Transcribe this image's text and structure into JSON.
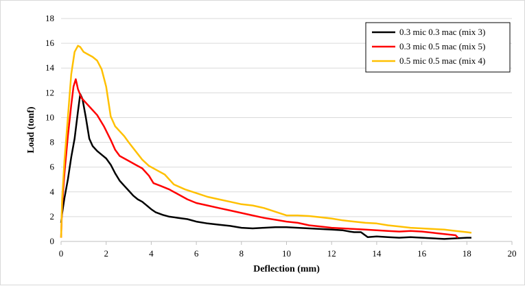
{
  "chart_data": {
    "type": "line",
    "xlabel": "Deflection (mm)",
    "ylabel": "Load (tonf)",
    "xlim": [
      0,
      20
    ],
    "ylim": [
      0,
      18
    ],
    "xticks": [
      0,
      2,
      4,
      6,
      8,
      10,
      12,
      14,
      16,
      18,
      20
    ],
    "yticks": [
      0,
      2,
      4,
      6,
      8,
      10,
      12,
      14,
      16,
      18
    ],
    "grid": "horizontal",
    "legend_position": "top-right",
    "series": [
      {
        "name": "0.3 mic 0.3 mac (mix 3)",
        "color": "#000000",
        "x": [
          0,
          0.05,
          0.15,
          0.3,
          0.45,
          0.6,
          0.75,
          0.85,
          0.95,
          1.1,
          1.25,
          1.4,
          1.6,
          1.8,
          2.0,
          2.2,
          2.4,
          2.6,
          2.8,
          3.0,
          3.2,
          3.4,
          3.6,
          3.8,
          4.0,
          4.2,
          4.5,
          4.8,
          5.2,
          5.6,
          6.0,
          6.5,
          7.0,
          7.5,
          8.0,
          8.5,
          9.0,
          9.5,
          10.0,
          10.5,
          11.0,
          11.5,
          12.0,
          12.5,
          12.8,
          13.0,
          13.3,
          13.6,
          14.0,
          14.5,
          15.0,
          15.5,
          16.0,
          16.5,
          17.0,
          17.5,
          18.0,
          18.2
        ],
        "y": [
          1.5,
          2.3,
          3.5,
          5.0,
          6.8,
          8.3,
          10.5,
          11.9,
          11.5,
          10.0,
          8.3,
          7.7,
          7.3,
          7.0,
          6.7,
          6.2,
          5.5,
          4.9,
          4.5,
          4.1,
          3.7,
          3.4,
          3.2,
          2.9,
          2.6,
          2.35,
          2.15,
          2.0,
          1.9,
          1.8,
          1.6,
          1.45,
          1.35,
          1.25,
          1.1,
          1.05,
          1.1,
          1.15,
          1.15,
          1.1,
          1.05,
          1.0,
          0.95,
          0.9,
          0.8,
          0.75,
          0.75,
          0.35,
          0.4,
          0.35,
          0.3,
          0.35,
          0.3,
          0.25,
          0.2,
          0.25,
          0.3,
          0.3
        ]
      },
      {
        "name": "0.3 mic 0.5 mac (mix 5)",
        "color": "#ff0000",
        "x": [
          0,
          0.05,
          0.15,
          0.3,
          0.45,
          0.55,
          0.65,
          0.75,
          0.9,
          1.1,
          1.3,
          1.6,
          1.9,
          2.2,
          2.4,
          2.6,
          2.8,
          3.0,
          3.3,
          3.6,
          3.9,
          4.1,
          4.4,
          4.8,
          5.2,
          5.6,
          6.0,
          6.5,
          7.0,
          7.5,
          8.0,
          8.5,
          9.0,
          9.5,
          10.0,
          10.5,
          11.0,
          11.5,
          12.0,
          12.5,
          13.0,
          13.5,
          14.0,
          14.5,
          15.0,
          15.5,
          16.0,
          16.5,
          17.0,
          17.5,
          17.6
        ],
        "y": [
          0.3,
          3.0,
          5.5,
          8.5,
          11.0,
          12.5,
          13.1,
          12.3,
          11.6,
          11.2,
          10.8,
          10.2,
          9.3,
          8.2,
          7.4,
          6.9,
          6.7,
          6.5,
          6.2,
          5.9,
          5.3,
          4.7,
          4.5,
          4.2,
          3.8,
          3.4,
          3.1,
          2.9,
          2.7,
          2.5,
          2.3,
          2.1,
          1.9,
          1.75,
          1.6,
          1.5,
          1.3,
          1.2,
          1.1,
          1.05,
          1.0,
          0.95,
          0.9,
          0.85,
          0.8,
          0.85,
          0.8,
          0.7,
          0.6,
          0.5,
          0.3
        ]
      },
      {
        "name": "0.5 mic 0.5 mac (mix 4)",
        "color": "#ffc000",
        "x": [
          0,
          0.05,
          0.15,
          0.3,
          0.45,
          0.6,
          0.75,
          0.85,
          1.0,
          1.2,
          1.4,
          1.6,
          1.8,
          2.0,
          2.2,
          2.4,
          2.6,
          2.8,
          3.0,
          3.3,
          3.6,
          3.9,
          4.2,
          4.6,
          5.0,
          5.5,
          6.0,
          6.5,
          7.0,
          7.5,
          8.0,
          8.5,
          9.0,
          9.5,
          10.0,
          10.5,
          11.0,
          11.5,
          12.0,
          12.5,
          13.0,
          13.5,
          14.0,
          14.5,
          15.0,
          15.5,
          16.0,
          16.5,
          17.0,
          17.5,
          18.0,
          18.2
        ],
        "y": [
          0.3,
          3.5,
          6.5,
          10.0,
          13.5,
          15.3,
          15.8,
          15.7,
          15.3,
          15.1,
          14.9,
          14.6,
          13.9,
          12.5,
          10.1,
          9.3,
          8.9,
          8.5,
          8.0,
          7.3,
          6.6,
          6.1,
          5.8,
          5.4,
          4.6,
          4.2,
          3.9,
          3.6,
          3.4,
          3.2,
          3.0,
          2.9,
          2.7,
          2.4,
          2.1,
          2.1,
          2.05,
          1.95,
          1.85,
          1.7,
          1.6,
          1.5,
          1.45,
          1.3,
          1.2,
          1.1,
          1.05,
          1.0,
          0.95,
          0.85,
          0.75,
          0.7
        ]
      }
    ]
  }
}
